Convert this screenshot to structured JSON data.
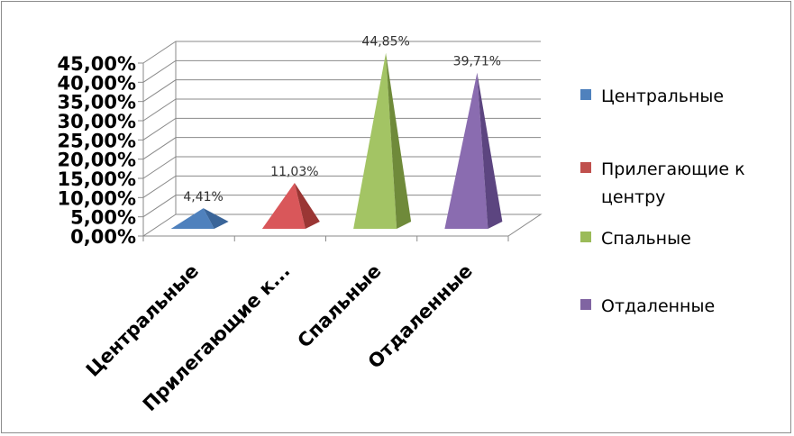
{
  "chart_data": {
    "type": "bar",
    "variant": "3d-pyramid",
    "categories": [
      "Центральные",
      "Прилегающие к...",
      "Спальные",
      "Отдаленные"
    ],
    "values": [
      4.41,
      11.03,
      44.85,
      39.71
    ],
    "data_labels": [
      "4,41%",
      "11,03%",
      "44,85%",
      "39,71%"
    ],
    "y_ticks": [
      "0,00%",
      "5,00%",
      "10,00%",
      "15,00%",
      "20,00%",
      "25,00%",
      "30,00%",
      "35,00%",
      "40,00%",
      "45,00%"
    ],
    "ylim": [
      0,
      45
    ],
    "grid": true,
    "legend": {
      "position": "right",
      "entries": [
        {
          "lines": [
            "Центральные"
          ],
          "color": "#4f81bd"
        },
        {
          "lines": [
            "Прилегающие к",
            "центру"
          ],
          "color": "#c0504d"
        },
        {
          "lines": [
            "Спальные"
          ],
          "color": "#9bbb59"
        },
        {
          "lines": [
            "Отдаленные"
          ],
          "color": "#8064a2"
        }
      ]
    },
    "colors": [
      {
        "front": "#4f81bd",
        "side": "#3a6599",
        "top": "#6f9bd4"
      },
      {
        "front": "#d9575a",
        "side": "#9a3634",
        "top": "#e07a78"
      },
      {
        "front": "#a3c464",
        "side": "#6f8a3a",
        "top": "#bcd684"
      },
      {
        "front": "#8a6cb0",
        "side": "#5c4580",
        "top": "#a48cc6"
      }
    ]
  }
}
